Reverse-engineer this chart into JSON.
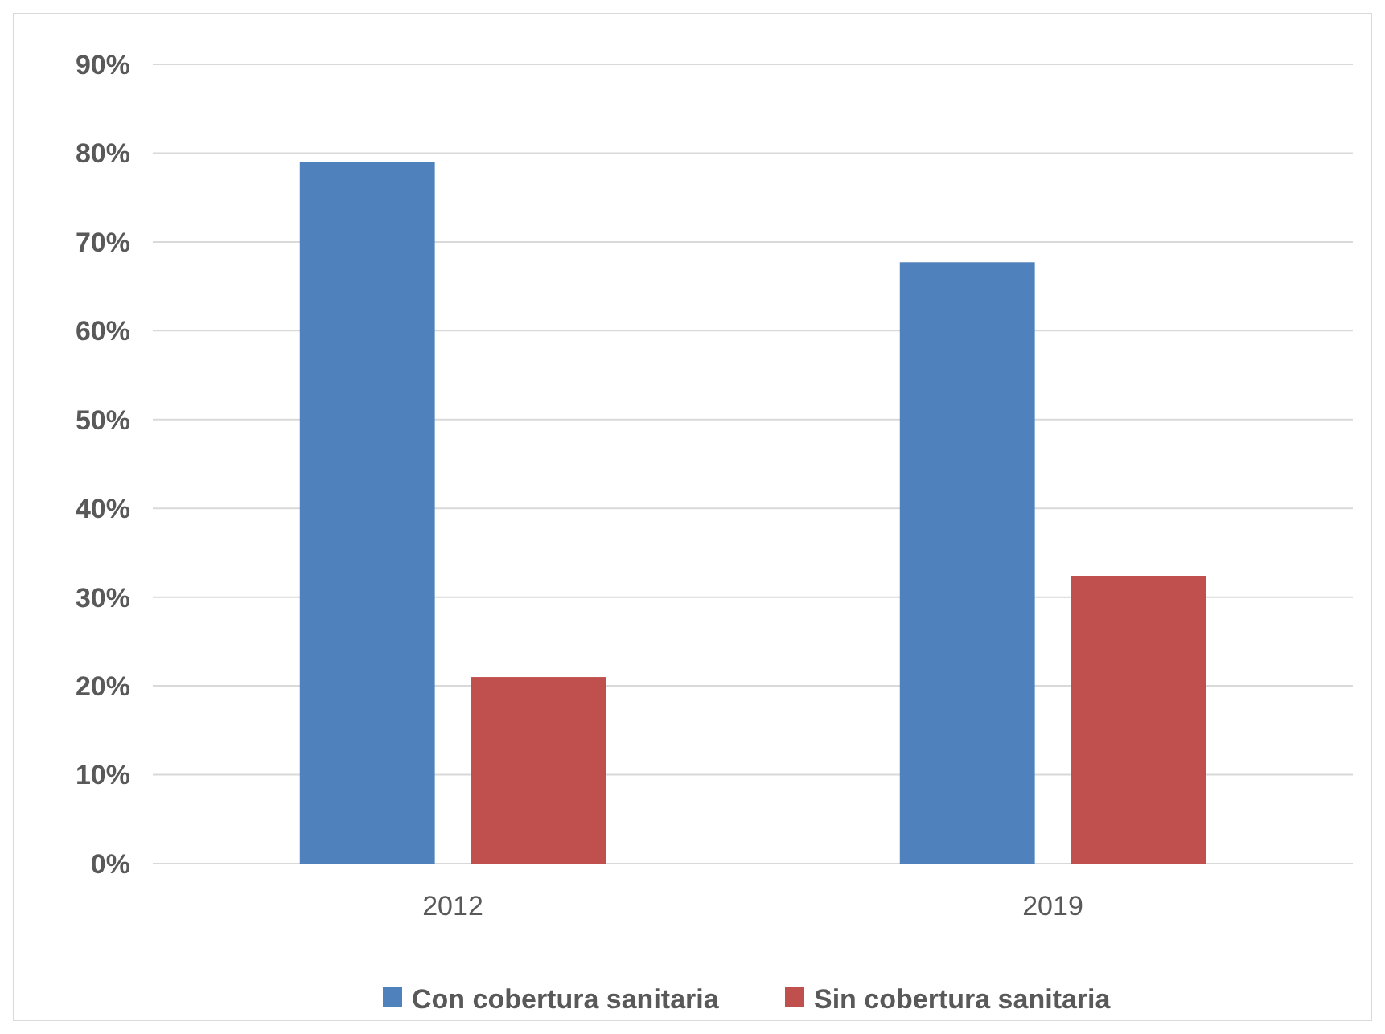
{
  "chart_data": {
    "type": "bar",
    "categories": [
      "2012",
      "2019"
    ],
    "series": [
      {
        "name": "Con cobertura sanitaria",
        "color": "#4f81bd",
        "values": [
          79,
          67.7
        ]
      },
      {
        "name": "Sin cobertura sanitaria",
        "color": "#c0504d",
        "values": [
          21,
          32.4
        ]
      }
    ],
    "ylim": [
      0,
      90
    ],
    "yticks": [
      {
        "value": 0,
        "label": "0%"
      },
      {
        "value": 10,
        "label": "10%"
      },
      {
        "value": 20,
        "label": "20%"
      },
      {
        "value": 30,
        "label": "30%"
      },
      {
        "value": 40,
        "label": "40%"
      },
      {
        "value": 50,
        "label": "50%"
      },
      {
        "value": 60,
        "label": "60%"
      },
      {
        "value": 70,
        "label": "70%"
      },
      {
        "value": 80,
        "label": "80%"
      },
      {
        "value": 90,
        "label": "90%"
      }
    ],
    "grid": "y",
    "legend": "bottom"
  }
}
